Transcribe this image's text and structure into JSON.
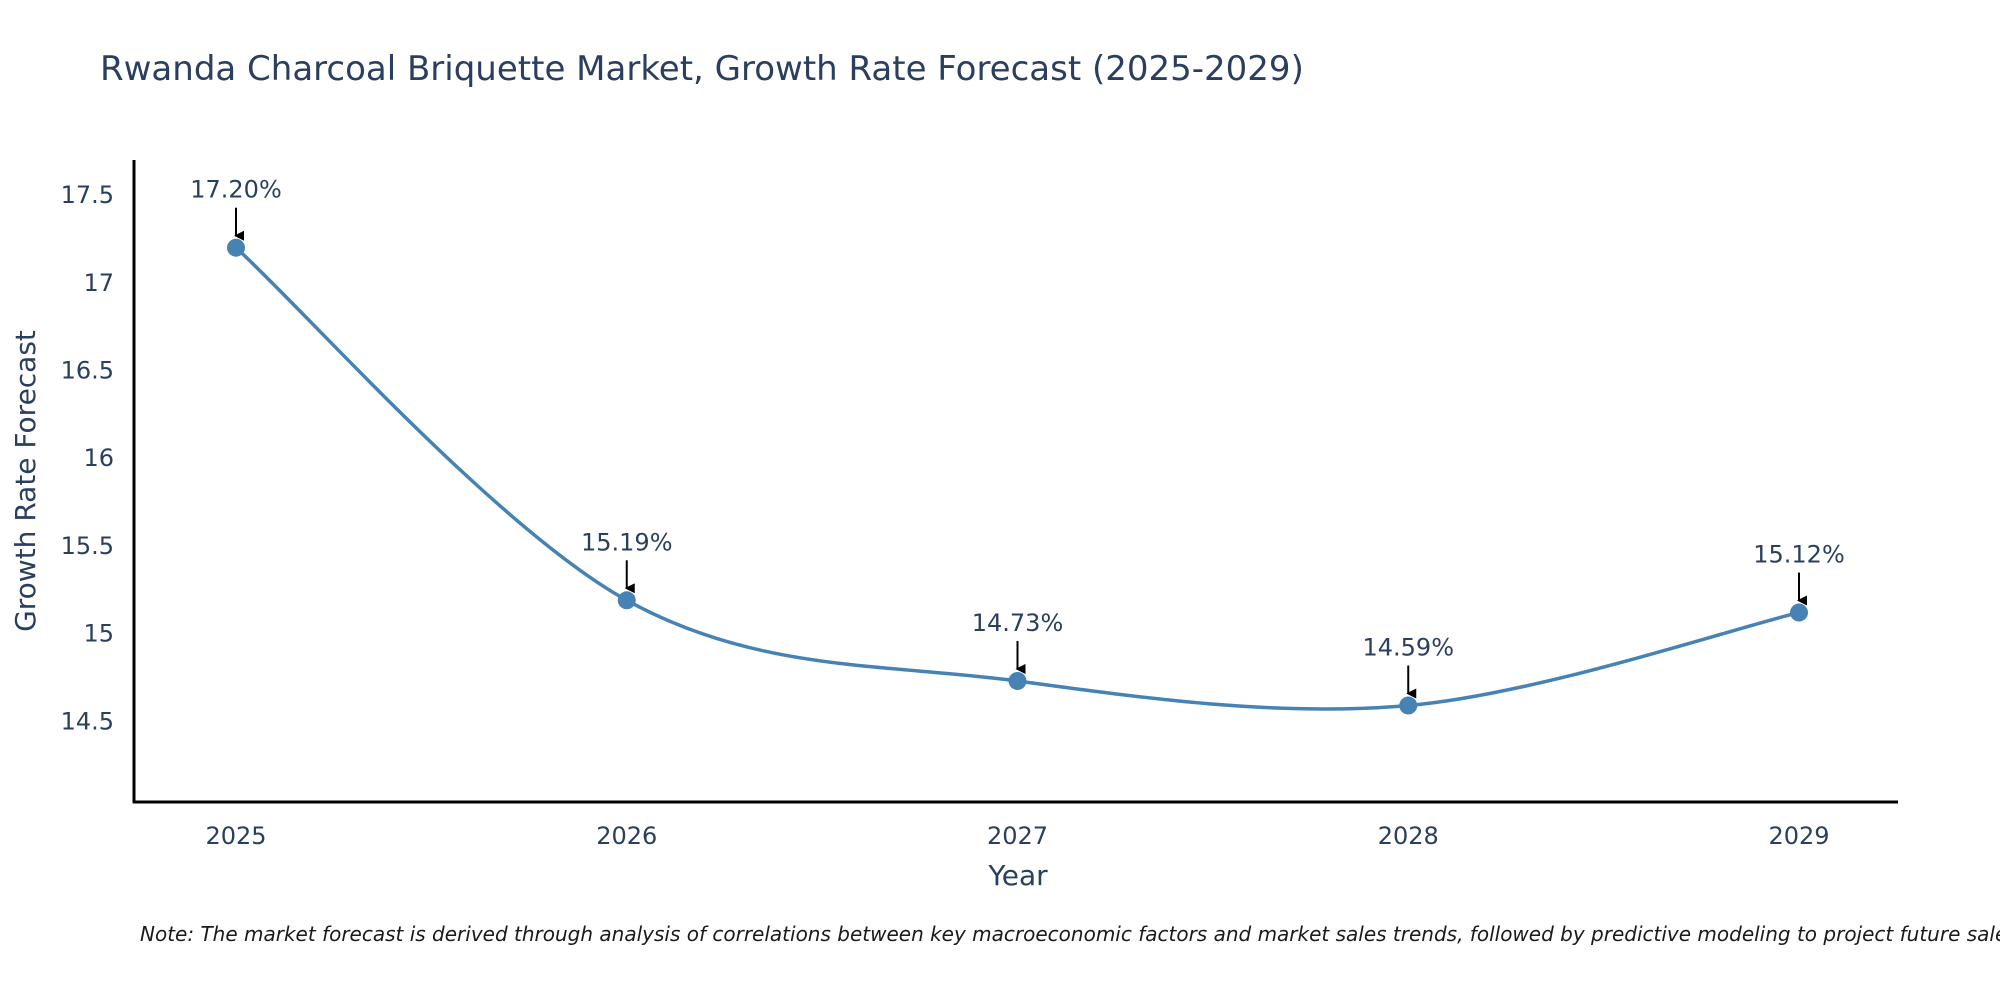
{
  "chart_data": {
    "type": "line",
    "title": "Rwanda Charcoal Briquette Market, Growth Rate Forecast (2025-2029)",
    "xlabel": "Year",
    "ylabel": "Growth Rate Forecast",
    "categories": [
      "2025",
      "2026",
      "2027",
      "2028",
      "2029"
    ],
    "series": [
      {
        "name": "Growth Rate Forecast",
        "values": [
          17.2,
          15.19,
          14.73,
          14.59,
          15.12
        ],
        "color": "#4682b4"
      }
    ],
    "data_labels": [
      "17.20%",
      "15.19%",
      "14.73%",
      "14.59%",
      "15.12%"
    ],
    "y_ticks": [
      "14.5",
      "15",
      "15.5",
      "16",
      "16.5",
      "17",
      "17.5"
    ],
    "y_tick_values": [
      14.5,
      15,
      15.5,
      16,
      16.5,
      17,
      17.5
    ],
    "ylim": [
      14.04,
      17.7
    ],
    "grid": false,
    "note": "Note: The market forecast is derived through analysis of correlations between key macroeconomic factors and market sales trends, followed by predictive modeling to project future sales."
  }
}
